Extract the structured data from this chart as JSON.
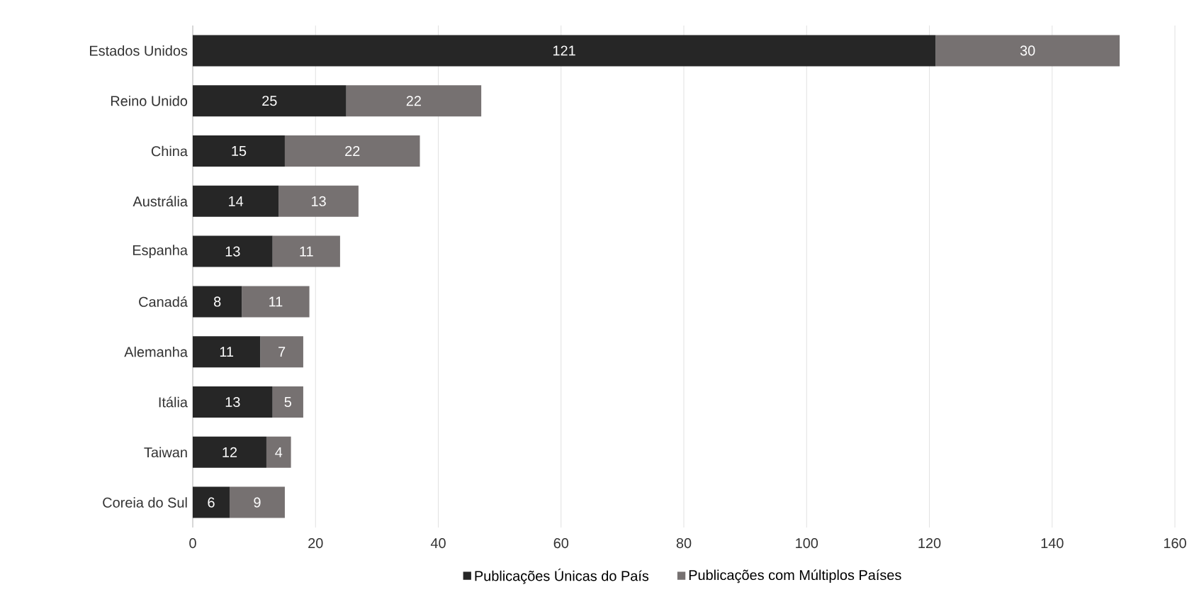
{
  "chart_data": {
    "type": "bar",
    "orientation": "horizontal",
    "stacked": true,
    "categories": [
      "Estados Unidos",
      "Reino Unido",
      "China",
      "Austrália",
      "Espanha",
      "Canadá",
      "Alemanha",
      "Itália",
      "Taiwan",
      "Coreia do Sul"
    ],
    "series": [
      {
        "name": "Publicações Únicas do País",
        "color": "#262626",
        "values": [
          121,
          25,
          15,
          14,
          13,
          8,
          11,
          13,
          12,
          6
        ]
      },
      {
        "name": "Publicações com Múltiplos Países",
        "color": "#767171",
        "values": [
          30,
          22,
          22,
          13,
          11,
          11,
          7,
          5,
          4,
          9
        ]
      }
    ],
    "xlim": [
      0,
      160
    ],
    "xticks": [
      0,
      20,
      40,
      60,
      80,
      100,
      120,
      140,
      160
    ],
    "grid": "x",
    "legend": "bottom",
    "data_labels": true
  }
}
